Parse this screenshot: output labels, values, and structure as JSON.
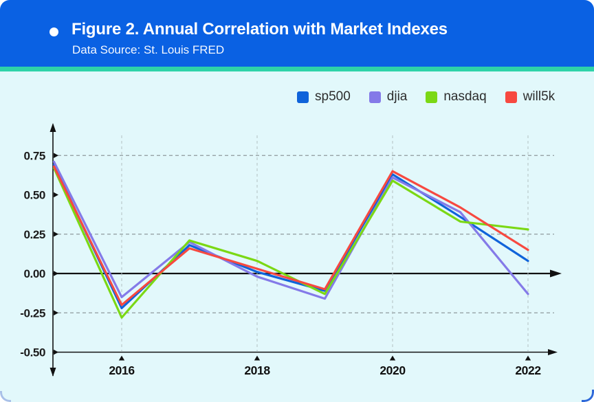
{
  "header": {
    "bullet": "",
    "title": "Figure 2. Annual Correlation with Market Indexes",
    "subtitle": "Data Source: St. Louis FRED"
  },
  "colors": {
    "banner": "#0a61e3",
    "accent_strip": "#2ed3a8",
    "body_bg": "#e2f8fb",
    "axis": "#111111",
    "grid_dashed_h": "#8d999c",
    "grid_dashed_v": "#b3bfc2",
    "tick_text": "#1b1b1b",
    "legend_text": "#2d2d2d"
  },
  "chart_data": {
    "type": "line",
    "title": "Figure 2. Annual Correlation with Market Indexes",
    "subtitle": "Data Source: St. Louis FRED",
    "xlabel": "",
    "ylabel": "",
    "grid": "dashed",
    "legend_position": "top",
    "ylim": [
      -0.5,
      0.75
    ],
    "xlim": [
      2015,
      2022
    ],
    "x": [
      2015,
      2016,
      2017,
      2018,
      2019,
      2020,
      2021,
      2022
    ],
    "series": [
      {
        "name": "sp500",
        "color": "#0f63da",
        "values": [
          0.69,
          -0.22,
          0.18,
          0.01,
          -0.11,
          0.63,
          0.36,
          0.08
        ]
      },
      {
        "name": "djia",
        "color": "#847ae8",
        "values": [
          0.71,
          -0.15,
          0.2,
          -0.02,
          -0.16,
          0.61,
          0.39,
          -0.13
        ]
      },
      {
        "name": "nasdaq",
        "color": "#7bd814",
        "values": [
          0.67,
          -0.28,
          0.21,
          0.08,
          -0.13,
          0.59,
          0.33,
          0.28
        ]
      },
      {
        "name": "will5k",
        "color": "#f74940",
        "values": [
          0.68,
          -0.2,
          0.16,
          0.03,
          -0.1,
          0.65,
          0.42,
          0.15
        ]
      }
    ],
    "y_ticks": [
      {
        "label": "0.75",
        "value": 0.75
      },
      {
        "label": "0.50",
        "value": 0.5
      },
      {
        "label": "0.25",
        "value": 0.25
      },
      {
        "label": "0.00",
        "value": 0
      },
      {
        "label": "-0.25",
        "value": -0.25
      },
      {
        "label": "-0.50",
        "value": -0.5
      }
    ],
    "x_ticks": [
      {
        "label": "2016",
        "value": 2016
      },
      {
        "label": "2018",
        "value": 2018
      },
      {
        "label": "2020",
        "value": 2020
      },
      {
        "label": "2022",
        "value": 2022
      }
    ]
  }
}
